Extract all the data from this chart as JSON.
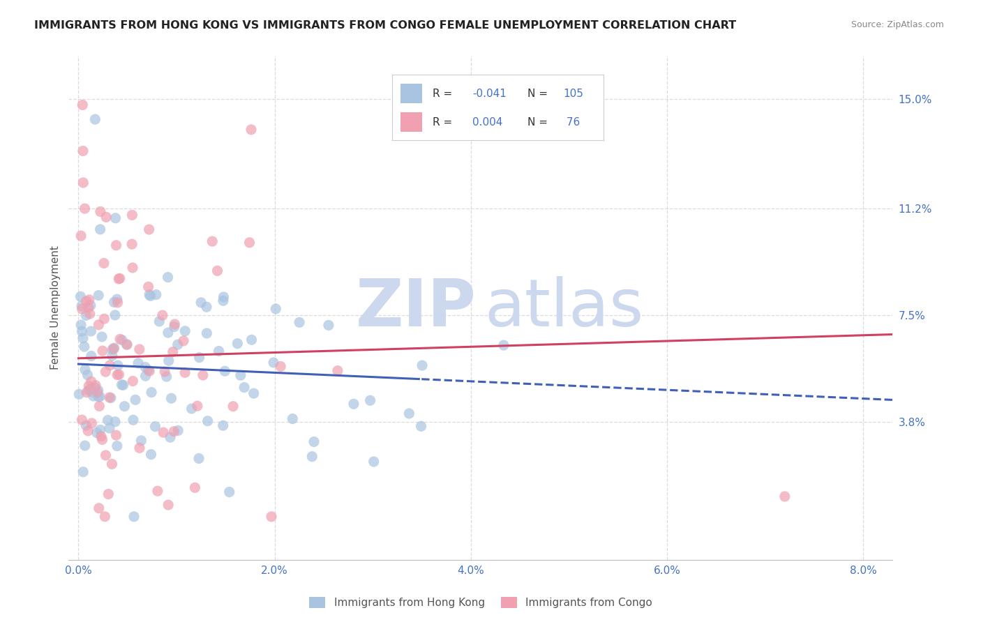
{
  "title": "IMMIGRANTS FROM HONG KONG VS IMMIGRANTS FROM CONGO FEMALE UNEMPLOYMENT CORRELATION CHART",
  "source": "Source: ZipAtlas.com",
  "xlabel_ticks": [
    "0.0%",
    "2.0%",
    "4.0%",
    "6.0%",
    "8.0%"
  ],
  "xlabel_vals": [
    0.0,
    0.02,
    0.04,
    0.06,
    0.08
  ],
  "ylabel_ticks": [
    "3.8%",
    "7.5%",
    "11.2%",
    "15.0%"
  ],
  "ylabel_vals": [
    0.038,
    0.075,
    0.112,
    0.15
  ],
  "xlim": [
    -0.001,
    0.083
  ],
  "ylim": [
    -0.01,
    0.165
  ],
  "hk_R": -0.041,
  "hk_N": 105,
  "congo_R": 0.004,
  "congo_N": 76,
  "hk_color": "#a8c4e0",
  "congo_color": "#f0a0b0",
  "hk_line_color": "#4060b8",
  "congo_line_color": "#d04060",
  "title_fontsize": 11.5,
  "watermark_color": "#ccd8ee",
  "grid_color": "#cccccc",
  "ylabel_text": "Female Unemployment",
  "legend_text_color": "#333333",
  "legend_num_color": "#4472c4",
  "tick_color": "#4472c4",
  "ylabel_color": "#555555",
  "source_color": "#888888"
}
